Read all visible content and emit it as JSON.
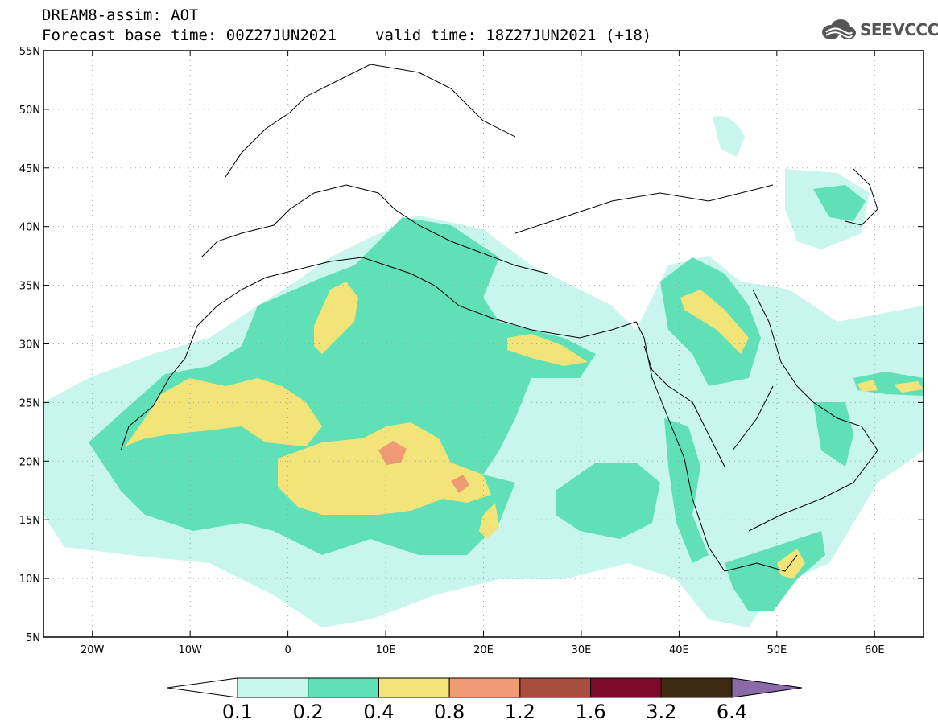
{
  "header": {
    "title": "DREAM8-assim: AOT",
    "base_time": "Forecast base time: 00Z27JUN2021",
    "valid_time": "valid time: 18Z27JUN2021 (+18)"
  },
  "logo": {
    "text": "SEEVCCC",
    "icon": "cloud-logo-icon"
  },
  "map": {
    "lat_ticks": [
      "55N",
      "50N",
      "45N",
      "40N",
      "35N",
      "30N",
      "25N",
      "20N",
      "15N",
      "10N",
      "5N"
    ],
    "lon_ticks": [
      "20W",
      "10W",
      "0",
      "10E",
      "20E",
      "30E",
      "40E",
      "50E",
      "60E"
    ],
    "lon_range": [
      -25,
      65
    ],
    "lat_range": [
      5,
      55
    ]
  },
  "colorbar": {
    "labels": [
      "0.1",
      "0.2",
      "0.4",
      "0.8",
      "1.2",
      "1.6",
      "3.2",
      "6.4"
    ],
    "colors": [
      "#ffffff",
      "#c8f5ec",
      "#5fe0b6",
      "#f3e47a",
      "#ee9a74",
      "#a84e3c",
      "#7e0b2c",
      "#3e2a12",
      "#8a6aa8"
    ]
  }
}
